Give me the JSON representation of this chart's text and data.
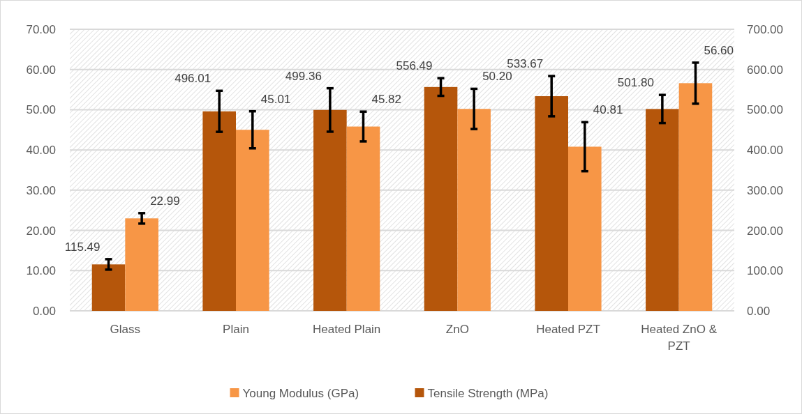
{
  "chart_data": {
    "type": "bar",
    "categories": [
      "Glass",
      "Plain",
      "Heated Plain",
      "ZnO",
      "Heated PZT",
      "Heated ZnO & PZT"
    ],
    "series": [
      {
        "name": "Tensile Strength (MPa)",
        "color": "#b5560b",
        "axis": "y2",
        "values": [
          115.49,
          496.01,
          499.36,
          556.49,
          533.67,
          501.8
        ],
        "value_labels": [
          "115.49",
          "496.01",
          "499.36",
          "556.49",
          "533.67",
          "501.80"
        ],
        "errors": [
          13,
          51,
          54,
          22,
          50,
          35
        ]
      },
      {
        "name": "Young Modulus (GPa)",
        "color": "#f79646",
        "values": [
          22.99,
          45.01,
          45.82,
          50.2,
          40.81,
          56.6
        ],
        "value_labels": [
          "22.99",
          "45.01",
          "45.82",
          "50.20",
          "40.81",
          "56.60"
        ],
        "errors": [
          1.3,
          4.6,
          3.7,
          5.0,
          6.1,
          5.1
        ]
      }
    ],
    "ylim": [
      0,
      70
    ],
    "yticks": [
      {
        "value": 0,
        "label": "0.00"
      },
      {
        "value": 10,
        "label": "10.00"
      },
      {
        "value": 20,
        "label": "20.00"
      },
      {
        "value": 30,
        "label": "30.00"
      },
      {
        "value": 40,
        "label": "40.00"
      },
      {
        "value": 50,
        "label": "50.00"
      },
      {
        "value": 60,
        "label": "60.00"
      },
      {
        "value": 70,
        "label": "70.00"
      }
    ],
    "y2lim": [
      0,
      700
    ],
    "y2ticks": [
      {
        "value": 0,
        "label": "0.00"
      },
      {
        "value": 100,
        "label": "100.00"
      },
      {
        "value": 200,
        "label": "200.00"
      },
      {
        "value": 300,
        "label": "300.00"
      },
      {
        "value": 400,
        "label": "400.00"
      },
      {
        "value": 500,
        "label": "500.00"
      },
      {
        "value": 600,
        "label": "600.00"
      },
      {
        "value": 700,
        "label": "700.00"
      }
    ],
    "grid": "y",
    "legend": "bottom"
  }
}
